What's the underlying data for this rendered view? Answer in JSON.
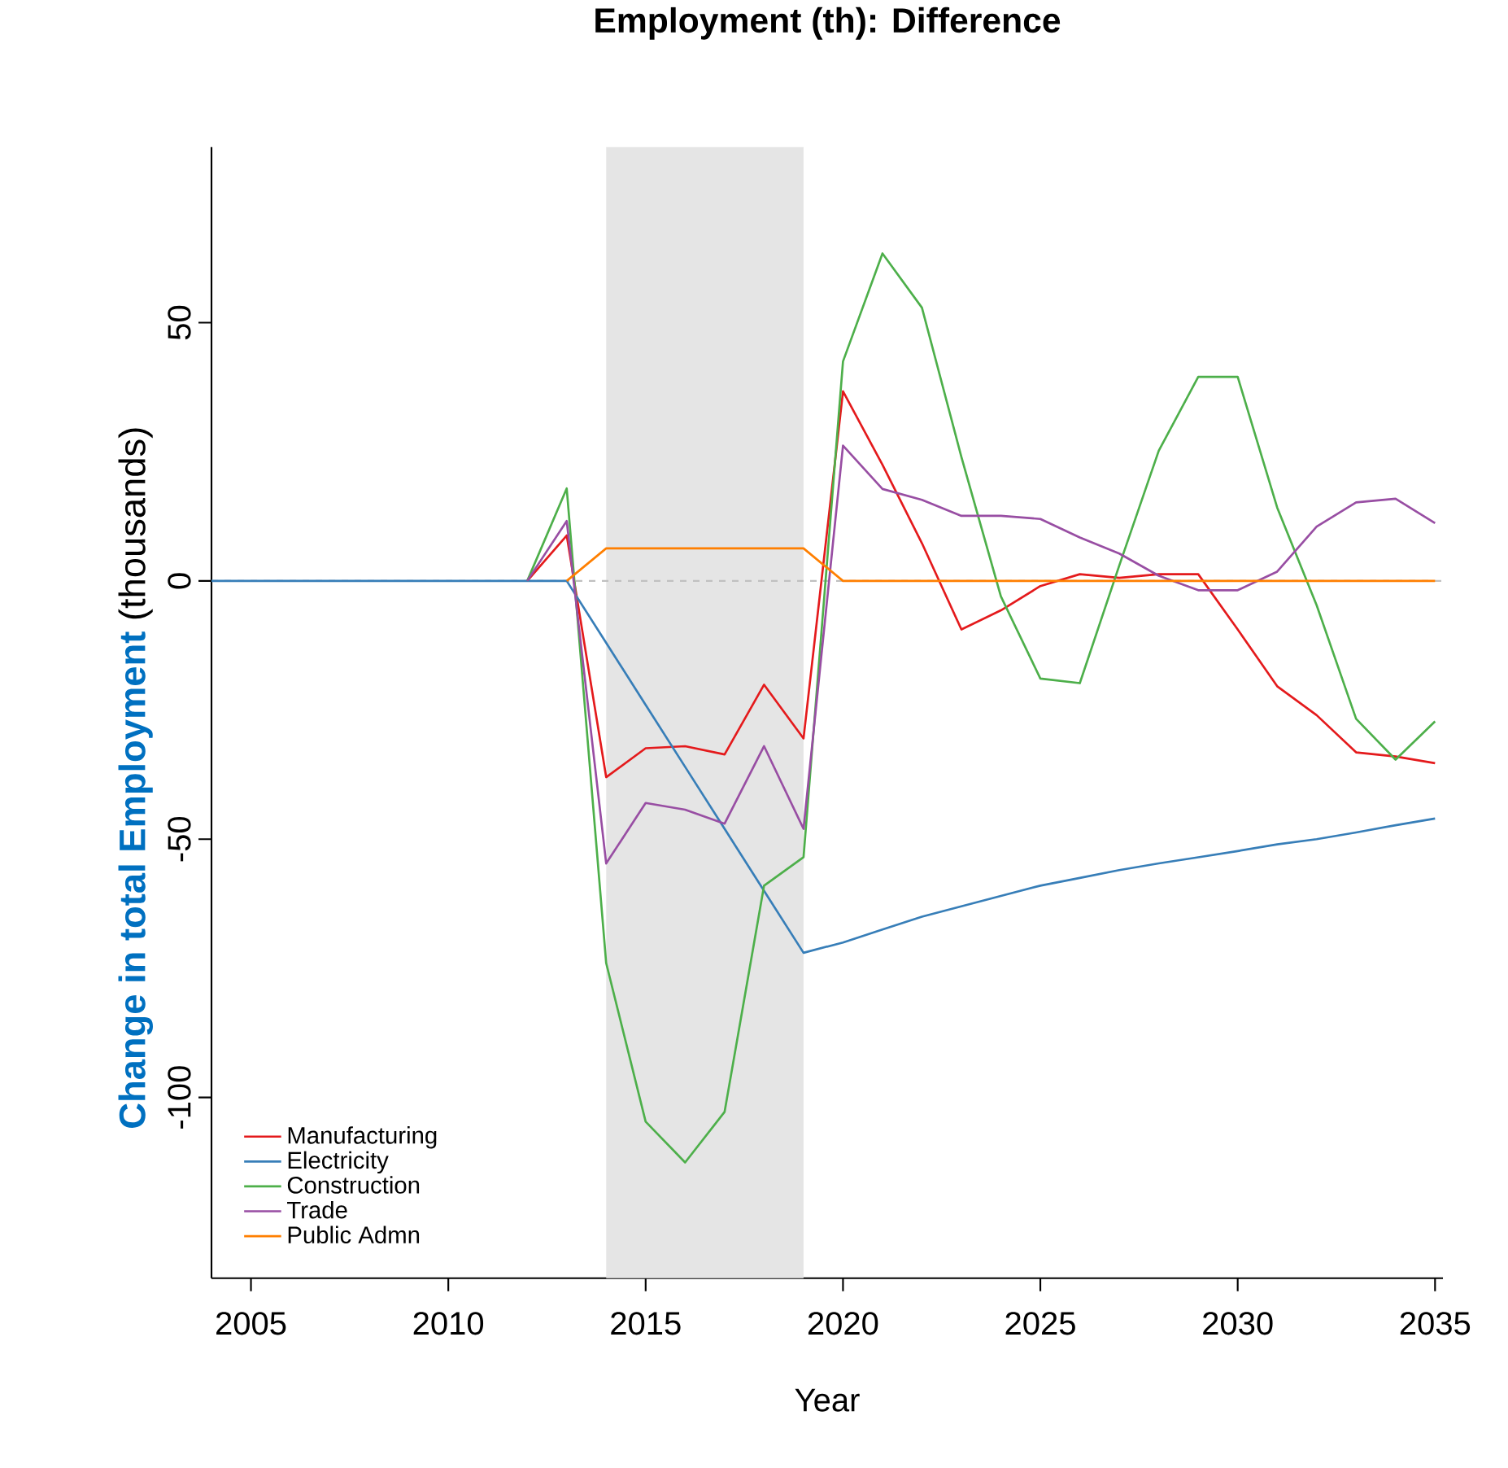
{
  "chart_data": {
    "type": "line",
    "title": "Employment (th): Difference",
    "xlabel": "Year",
    "ylabel": "**Change in total Employment** (thousands)",
    "x": [
      2004,
      2005,
      2006,
      2007,
      2008,
      2009,
      2010,
      2011,
      2012,
      2013,
      2014,
      2015,
      2016,
      2017,
      2018,
      2019,
      2020,
      2021,
      2022,
      2023,
      2024,
      2025,
      2026,
      2027,
      2028,
      2029,
      2030,
      2031,
      2032,
      2033,
      2034,
      2035
    ],
    "series": [
      {
        "name": "Manufacturing",
        "color": "#e41a1c",
        "values": [
          null,
          null,
          null,
          null,
          null,
          null,
          null,
          null,
          0,
          8.8,
          -38,
          -32.4,
          -32,
          -33.6,
          -20.1,
          -30.5,
          36.7,
          22.5,
          7.3,
          -9.4,
          -5.7,
          -1,
          1.3,
          0.6,
          1.3,
          1.3,
          -9.4,
          -20.4,
          -26,
          -33.2,
          -34,
          -35.3
        ]
      },
      {
        "name": "Electricity",
        "color": "#377eb8",
        "values": [
          0,
          0,
          0,
          0,
          0,
          0,
          0,
          0,
          0,
          0,
          -12,
          -24,
          -36,
          -48,
          -60,
          -72,
          -70,
          -67.5,
          -65,
          -63,
          -61,
          -59,
          -57.5,
          -56,
          -54.7,
          -53.5,
          -52.3,
          -51,
          -50,
          -48.7,
          -47.3,
          -46
        ]
      },
      {
        "name": "Construction",
        "color": "#4daf4a",
        "values": [
          null,
          null,
          null,
          null,
          null,
          null,
          null,
          null,
          0,
          17.9,
          -74,
          -104.7,
          -112.6,
          -102.8,
          -59,
          -53.5,
          42.5,
          63.4,
          52.9,
          24,
          -3,
          -18.9,
          -19.8,
          3,
          25.2,
          39.5,
          39.5,
          14.2,
          -4.7,
          -26.7,
          -34.6,
          -27.2
        ]
      },
      {
        "name": "Trade",
        "color": "#984ea3",
        "values": [
          null,
          null,
          null,
          null,
          null,
          null,
          null,
          null,
          0,
          11.6,
          -54.7,
          -43,
          -44.3,
          -47,
          -32,
          -48,
          26.2,
          17.8,
          15.7,
          12.6,
          12.6,
          12,
          8.4,
          5.3,
          1,
          -1.8,
          -1.8,
          1.8,
          10.5,
          15.2,
          15.9,
          11.2
        ]
      },
      {
        "name": "Public Admn",
        "color": "#ff7f00",
        "values": [
          null,
          null,
          null,
          null,
          null,
          null,
          null,
          null,
          null,
          0,
          6.3,
          6.3,
          6.3,
          6.3,
          6.3,
          6.3,
          0,
          0,
          0,
          0,
          0,
          0,
          0,
          0,
          0,
          0,
          0,
          0,
          0,
          0,
          0,
          0
        ]
      }
    ],
    "xlim": [
      2004,
      2035.2
    ],
    "ylim": [
      -135,
      84
    ],
    "xticks": [
      2005,
      2010,
      2015,
      2020,
      2025,
      2030,
      2035
    ],
    "yticks": [
      -100,
      -50,
      0,
      50
    ],
    "ref_lines": [
      {
        "axis": "y",
        "value": 0,
        "color": "#c0c0c0",
        "line_style": "dashed"
      }
    ],
    "bands": [
      {
        "axis": "x",
        "from": 2014,
        "to": 2019,
        "color": "#e5e5e5"
      }
    ],
    "legend": "bottom left",
    "grid": false,
    "marker": "none",
    "line_style": "solid"
  }
}
